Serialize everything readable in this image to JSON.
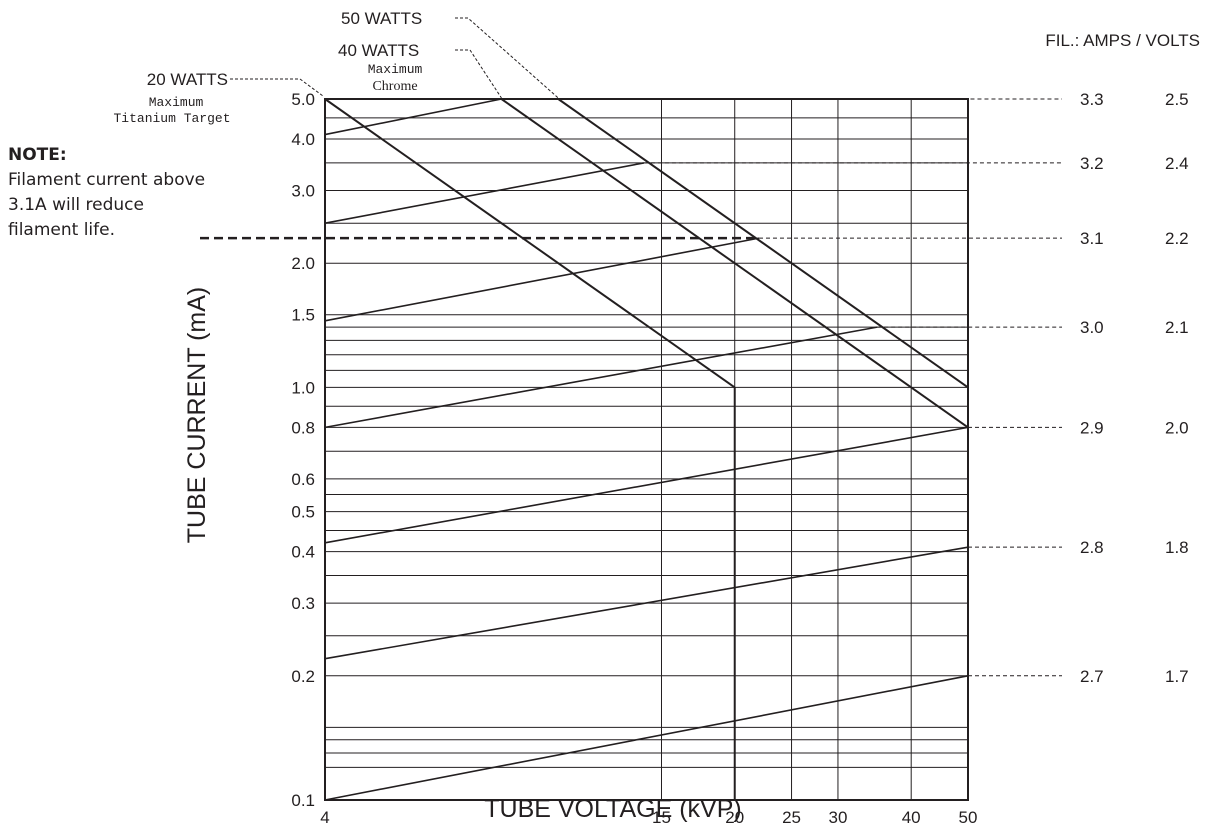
{
  "chart_data": {
    "type": "line",
    "title": "",
    "xlabel": "TUBE VOLTAGE (kVP)",
    "ylabel": "TUBE CURRENT (mA)",
    "x_scale": "log",
    "y_scale": "log",
    "xlim": [
      4,
      50
    ],
    "ylim": [
      0.1,
      5.0
    ],
    "x_ticks": [
      4,
      15,
      20,
      25,
      30,
      40,
      50
    ],
    "x_tick_labels": [
      "4",
      "15",
      "20",
      "25",
      "30",
      "40",
      "50"
    ],
    "x_gridlines": [
      15,
      20,
      25,
      30,
      40
    ],
    "y_ticks": [
      0.1,
      0.2,
      0.3,
      0.4,
      0.5,
      0.6,
      0.8,
      1.0,
      1.5,
      2.0,
      3.0,
      4.0,
      5.0
    ],
    "y_tick_labels": [
      "0.1",
      "0.2",
      "0.3",
      "0.4",
      "0.5",
      "0.6",
      "0.8",
      "1.0",
      "1.5",
      "2.0",
      "3.0",
      "4.0",
      "5.0"
    ],
    "y_gridlines": [
      0.12,
      0.13,
      0.14,
      0.15,
      0.2,
      0.25,
      0.3,
      0.35,
      0.4,
      0.45,
      0.5,
      0.55,
      0.6,
      0.7,
      0.8,
      0.9,
      1.0,
      1.1,
      1.2,
      1.3,
      1.4,
      1.5,
      2.0,
      2.5,
      3.0,
      3.5,
      4.0,
      4.5
    ],
    "grid": true,
    "power_limits": [
      {
        "label": "20 WATTS",
        "note": "Maximum\nTitanium Target",
        "points": [
          [
            4,
            5.0
          ],
          [
            20,
            1.0
          ]
        ],
        "drop_to_axis_at": 20
      },
      {
        "label": "40 WATTS",
        "note": "Maximum\nChrome",
        "points": [
          [
            8,
            5.0
          ],
          [
            50,
            0.8
          ]
        ]
      },
      {
        "label": "50 WATTS",
        "note": "",
        "points": [
          [
            10,
            5.0
          ],
          [
            50,
            1.0
          ]
        ]
      }
    ],
    "filament_lines": [
      {
        "amps": "3.3",
        "volts": "2.5",
        "points": [
          [
            4,
            4.1
          ],
          [
            8,
            5.0
          ]
        ]
      },
      {
        "amps": "3.2",
        "volts": "2.4",
        "points": [
          [
            4,
            2.5
          ],
          [
            14,
            3.5
          ]
        ]
      },
      {
        "amps": "3.1",
        "volts": "2.2",
        "points": [
          [
            4,
            1.45
          ],
          [
            22,
            2.3
          ]
        ],
        "dashed_guide": true
      },
      {
        "amps": "3.0",
        "volts": "2.1",
        "points": [
          [
            4,
            0.8
          ],
          [
            35,
            1.4
          ]
        ]
      },
      {
        "amps": "2.9",
        "volts": "2.0",
        "points": [
          [
            4,
            0.42
          ],
          [
            50,
            0.8
          ]
        ]
      },
      {
        "amps": "2.8",
        "volts": "1.8",
        "points": [
          [
            4,
            0.22
          ],
          [
            50,
            0.41
          ]
        ]
      },
      {
        "amps": "2.7",
        "volts": "1.7",
        "points": [
          [
            4,
            0.1
          ],
          [
            50,
            0.2
          ]
        ]
      }
    ],
    "fil_header": "FIL.:  AMPS / VOLTS"
  },
  "note": {
    "title": "NOTE:",
    "body": "Filament current above 3.1A will reduce filament life."
  }
}
